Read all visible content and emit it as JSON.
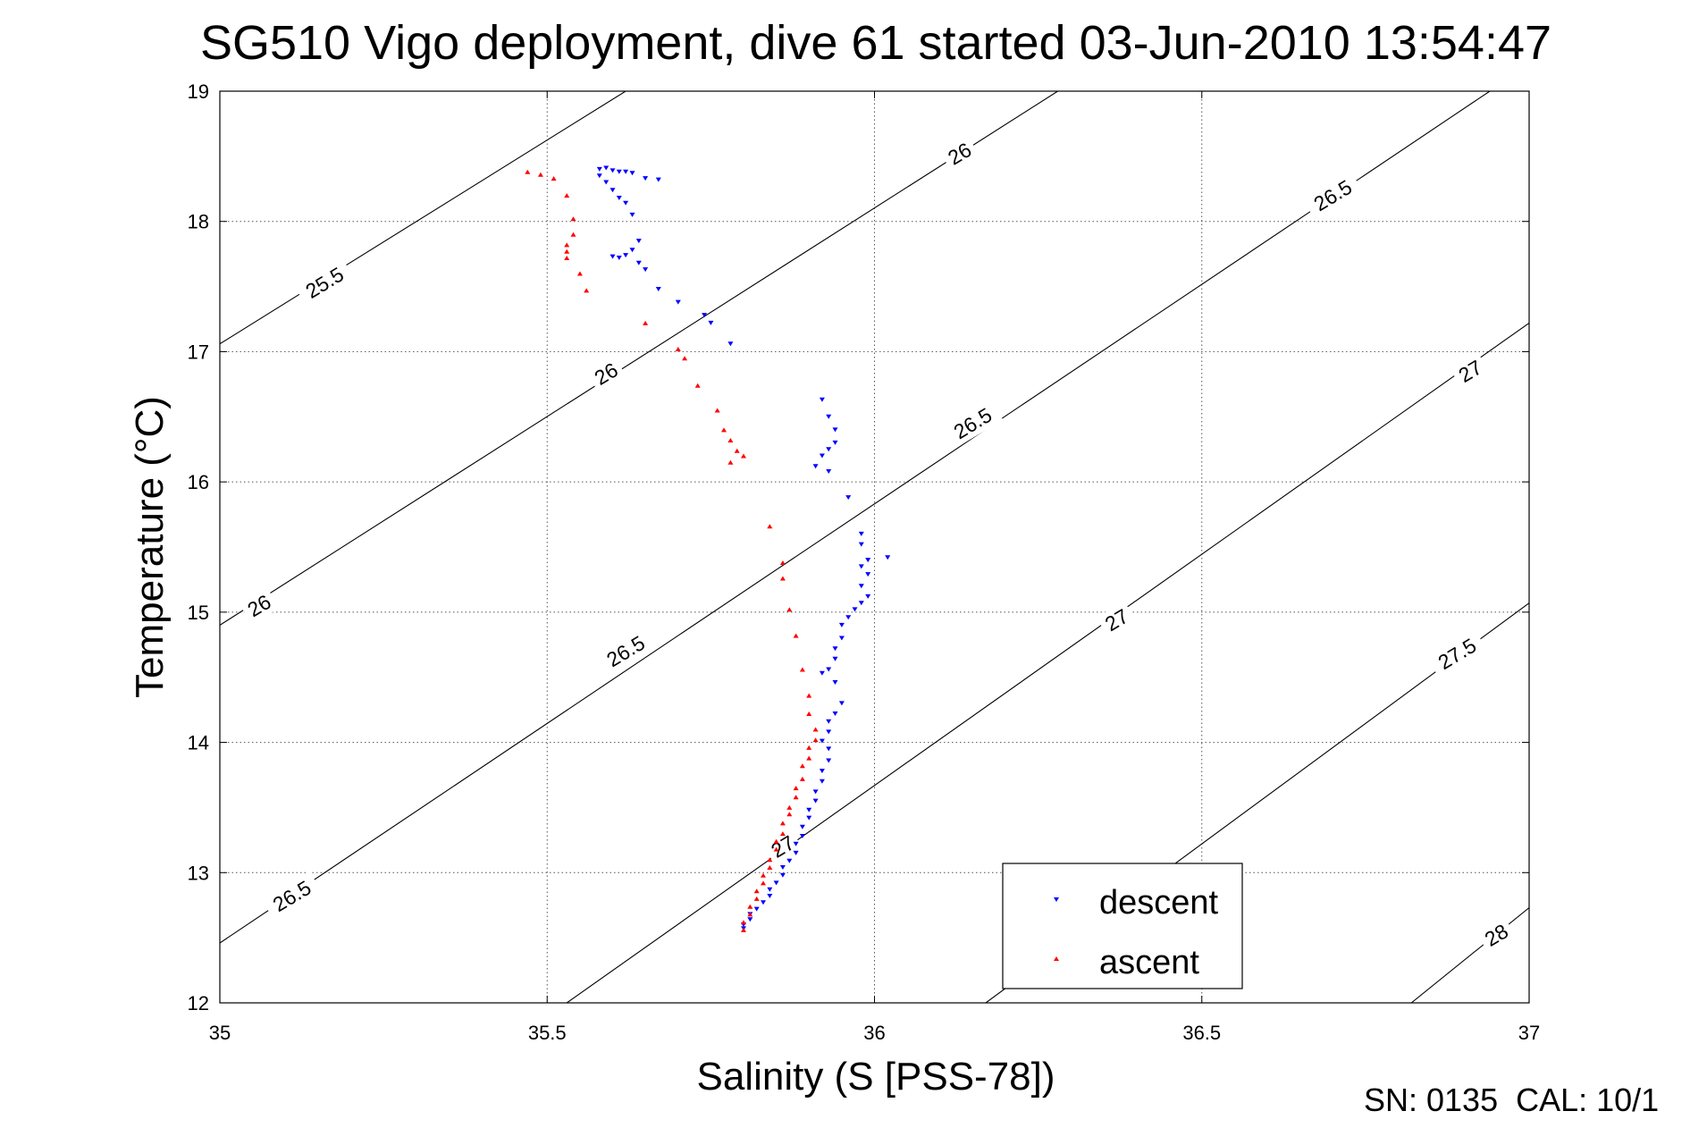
{
  "footer_text": "SN: 0135  CAL: 10/1",
  "chart_data": {
    "type": "scatter",
    "title": "SG510 Vigo deployment, dive 61 started 03-Jun-2010 13:54:47",
    "xlabel": "Salinity (S [PSS-78])",
    "ylabel": "Temperature (°C)",
    "xlim": [
      35,
      37
    ],
    "ylim": [
      12,
      19
    ],
    "xticks": [
      35,
      35.5,
      36,
      36.5,
      37
    ],
    "yticks": [
      12,
      13,
      14,
      15,
      16,
      17,
      18,
      19
    ],
    "grid": true,
    "legend_position": "lower-right",
    "isopycnal_contours": [
      {
        "sigma": 25.5,
        "label": "25.5",
        "points": [
          [
            35.0,
            17.06
          ],
          [
            35.62,
            19.0
          ]
        ]
      },
      {
        "sigma": 26,
        "label": "26",
        "points": [
          [
            35.0,
            14.9
          ],
          [
            36.28,
            19.0
          ]
        ]
      },
      {
        "sigma": 26.5,
        "label": "26.5",
        "points": [
          [
            35.0,
            12.46
          ],
          [
            36.94,
            19.0
          ]
        ]
      },
      {
        "sigma": 27,
        "label": "27",
        "points": [
          [
            35.53,
            12.0
          ],
          [
            37.0,
            17.22
          ]
        ]
      },
      {
        "sigma": 27.5,
        "label": "27.5",
        "points": [
          [
            36.17,
            12.0
          ],
          [
            37.0,
            15.07
          ]
        ]
      },
      {
        "sigma": 28,
        "label": "28",
        "points": [
          [
            36.82,
            12.0
          ],
          [
            37.0,
            12.73
          ]
        ]
      }
    ],
    "contour_labels": [
      {
        "text": "25.5",
        "x": 35.16,
        "y": 17.53
      },
      {
        "text": "26",
        "x": 35.59,
        "y": 16.83
      },
      {
        "text": "26",
        "x": 36.13,
        "y": 18.52
      },
      {
        "text": "26",
        "x": 35.06,
        "y": 15.05
      },
      {
        "text": "26.5",
        "x": 35.62,
        "y": 14.7
      },
      {
        "text": "26.5",
        "x": 36.15,
        "y": 16.45
      },
      {
        "text": "26.5",
        "x": 36.7,
        "y": 18.2
      },
      {
        "text": "26.5",
        "x": 35.11,
        "y": 12.82
      },
      {
        "text": "27",
        "x": 35.86,
        "y": 13.2
      },
      {
        "text": "27",
        "x": 36.37,
        "y": 14.94
      },
      {
        "text": "27",
        "x": 36.91,
        "y": 16.85
      },
      {
        "text": "27.5",
        "x": 36.89,
        "y": 14.68
      },
      {
        "text": "28",
        "x": 36.95,
        "y": 12.52
      }
    ],
    "series": [
      {
        "name": "descent",
        "color": "#0000ff",
        "marker": "triangle-down",
        "points": [
          [
            35.58,
            18.4
          ],
          [
            35.59,
            18.41
          ],
          [
            35.6,
            18.39
          ],
          [
            35.61,
            18.38
          ],
          [
            35.62,
            18.38
          ],
          [
            35.63,
            18.37
          ],
          [
            35.65,
            18.33
          ],
          [
            35.67,
            18.32
          ],
          [
            35.58,
            18.35
          ],
          [
            35.59,
            18.3
          ],
          [
            35.6,
            18.24
          ],
          [
            35.61,
            18.18
          ],
          [
            35.62,
            18.14
          ],
          [
            35.63,
            18.05
          ],
          [
            35.64,
            17.85
          ],
          [
            35.63,
            17.78
          ],
          [
            35.62,
            17.74
          ],
          [
            35.61,
            17.72
          ],
          [
            35.6,
            17.73
          ],
          [
            35.64,
            17.68
          ],
          [
            35.65,
            17.63
          ],
          [
            35.67,
            17.48
          ],
          [
            35.7,
            17.38
          ],
          [
            35.74,
            17.28
          ],
          [
            35.75,
            17.22
          ],
          [
            35.78,
            17.06
          ],
          [
            35.92,
            16.63
          ],
          [
            35.93,
            16.5
          ],
          [
            35.94,
            16.4
          ],
          [
            35.94,
            16.3
          ],
          [
            35.93,
            16.25
          ],
          [
            35.92,
            16.2
          ],
          [
            35.91,
            16.12
          ],
          [
            35.93,
            16.08
          ],
          [
            35.96,
            15.88
          ],
          [
            35.98,
            15.6
          ],
          [
            35.98,
            15.52
          ],
          [
            36.02,
            15.42
          ],
          [
            35.99,
            15.4
          ],
          [
            35.98,
            15.35
          ],
          [
            35.99,
            15.29
          ],
          [
            35.98,
            15.2
          ],
          [
            35.99,
            15.12
          ],
          [
            35.98,
            15.07
          ],
          [
            35.97,
            15.02
          ],
          [
            35.96,
            14.96
          ],
          [
            35.95,
            14.9
          ],
          [
            35.95,
            14.8
          ],
          [
            35.94,
            14.72
          ],
          [
            35.94,
            14.64
          ],
          [
            35.93,
            14.56
          ],
          [
            35.92,
            14.53
          ],
          [
            35.94,
            14.46
          ],
          [
            35.95,
            14.3
          ],
          [
            35.94,
            14.22
          ],
          [
            35.93,
            14.16
          ],
          [
            35.93,
            14.08
          ],
          [
            35.92,
            14.01
          ],
          [
            35.93,
            13.95
          ],
          [
            35.93,
            13.86
          ],
          [
            35.92,
            13.78
          ],
          [
            35.92,
            13.7
          ],
          [
            35.91,
            13.62
          ],
          [
            35.91,
            13.55
          ],
          [
            35.9,
            13.48
          ],
          [
            35.9,
            13.42
          ],
          [
            35.89,
            13.35
          ],
          [
            35.89,
            13.28
          ],
          [
            35.88,
            13.22
          ],
          [
            35.88,
            13.15
          ],
          [
            35.87,
            13.09
          ],
          [
            35.86,
            13.04
          ],
          [
            35.86,
            12.98
          ],
          [
            35.85,
            12.92
          ],
          [
            35.84,
            12.87
          ],
          [
            35.84,
            12.82
          ],
          [
            35.83,
            12.77
          ],
          [
            35.82,
            12.72
          ],
          [
            35.81,
            12.68
          ],
          [
            35.81,
            12.64
          ],
          [
            35.8,
            12.6
          ],
          [
            35.8,
            12.57
          ]
        ]
      },
      {
        "name": "ascent",
        "color": "#ff0000",
        "marker": "triangle-up",
        "points": [
          [
            35.47,
            18.38
          ],
          [
            35.49,
            18.36
          ],
          [
            35.51,
            18.33
          ],
          [
            35.53,
            18.2
          ],
          [
            35.54,
            18.02
          ],
          [
            35.54,
            17.9
          ],
          [
            35.53,
            17.82
          ],
          [
            35.53,
            17.77
          ],
          [
            35.53,
            17.72
          ],
          [
            35.55,
            17.6
          ],
          [
            35.56,
            17.47
          ],
          [
            35.65,
            17.22
          ],
          [
            35.7,
            17.02
          ],
          [
            35.71,
            16.95
          ],
          [
            35.73,
            16.74
          ],
          [
            35.76,
            16.55
          ],
          [
            35.77,
            16.4
          ],
          [
            35.78,
            16.32
          ],
          [
            35.79,
            16.24
          ],
          [
            35.8,
            16.2
          ],
          [
            35.78,
            16.15
          ],
          [
            35.84,
            15.66
          ],
          [
            35.86,
            15.38
          ],
          [
            35.86,
            15.26
          ],
          [
            35.87,
            15.02
          ],
          [
            35.88,
            14.82
          ],
          [
            35.89,
            14.56
          ],
          [
            35.9,
            14.36
          ],
          [
            35.9,
            14.22
          ],
          [
            35.91,
            14.1
          ],
          [
            35.91,
            14.02
          ],
          [
            35.9,
            13.96
          ],
          [
            35.9,
            13.88
          ],
          [
            35.89,
            13.82
          ],
          [
            35.89,
            13.72
          ],
          [
            35.88,
            13.65
          ],
          [
            35.88,
            13.58
          ],
          [
            35.87,
            13.5
          ],
          [
            35.87,
            13.45
          ],
          [
            35.86,
            13.38
          ],
          [
            35.86,
            13.3
          ],
          [
            35.85,
            13.24
          ],
          [
            35.85,
            13.18
          ],
          [
            35.84,
            13.1
          ],
          [
            35.84,
            13.04
          ],
          [
            35.83,
            12.98
          ],
          [
            35.83,
            12.92
          ],
          [
            35.82,
            12.86
          ],
          [
            35.82,
            12.8
          ],
          [
            35.81,
            12.74
          ],
          [
            35.81,
            12.68
          ],
          [
            35.8,
            12.62
          ],
          [
            35.8,
            12.56
          ]
        ]
      }
    ]
  }
}
